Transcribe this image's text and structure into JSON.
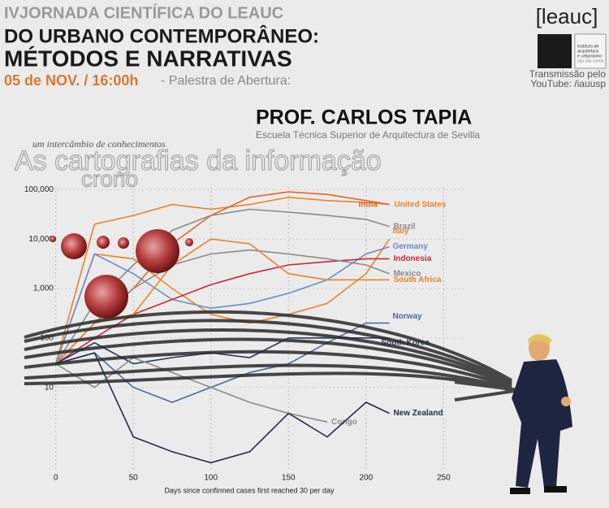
{
  "header": {
    "line1": "IVJORNADA CIENTÍFICA DO LEAUC",
    "line2": "DO URBANO CONTEMPORÂNEO:",
    "line3": "MÉTODOS E NARRATIVAS",
    "date": "05 de NOV. / 16:00h",
    "session": "- Palestra de Abertura:"
  },
  "logo": {
    "name": "[leauc]",
    "institute": [
      "instituto de",
      "arquitetura",
      "e urbanismo",
      "usp são carlos"
    ],
    "stream": [
      "Transmissão pelo",
      "YouTube: /iauusp"
    ]
  },
  "speaker": {
    "name": "PROF. CARLOS TAPIA",
    "affiliation": "Escuela Técnica Superior de Arquitectura de Sevilla"
  },
  "talk": {
    "tagline": "um intercâmbio de conhecimentos",
    "title": "As cartografias da informação",
    "subtitle": "crono"
  },
  "chart_data": {
    "type": "line",
    "log_y": true,
    "grid": true,
    "x_label": "Days since confirmed cases first reached 30 per day",
    "x": [
      0,
      25,
      50,
      75,
      100,
      125,
      150,
      175,
      200,
      215
    ],
    "xlim": [
      -15,
      265
    ],
    "xticks": [
      0,
      50,
      100,
      150,
      200,
      250
    ],
    "ylim": [
      0.2,
      200000
    ],
    "yticks": [
      10,
      100,
      {
        "value": 1000,
        "label": "1,000"
      },
      {
        "value": 10000,
        "label": "10,000"
      },
      {
        "value": 100000,
        "label": "100,000"
      }
    ],
    "series": [
      {
        "name": "United States",
        "color": "#e8842c",
        "values": [
          30,
          20000,
          30000,
          50000,
          40000,
          50000,
          70000,
          60000,
          55000,
          50000
        ]
      },
      {
        "name": "India",
        "color": "#e0692a",
        "values": [
          30,
          200,
          1000,
          8000,
          30000,
          70000,
          90000,
          80000,
          60000,
          50000
        ]
      },
      {
        "name": "Brazil",
        "color": "#8a8a8a",
        "values": [
          30,
          500,
          3000,
          15000,
          30000,
          40000,
          35000,
          30000,
          25000,
          18000
        ]
      },
      {
        "name": "Italy",
        "color": "#e8842c",
        "values": [
          30,
          5000,
          4000,
          1000,
          300,
          200,
          300,
          500,
          2000,
          10000
        ]
      },
      {
        "name": "Germany",
        "color": "#6a8cc7",
        "values": [
          30,
          5000,
          2000,
          600,
          400,
          500,
          800,
          1500,
          5000,
          7000
        ]
      },
      {
        "name": "Indonesia",
        "color": "#c8283c",
        "values": [
          30,
          100,
          300,
          600,
          1200,
          2000,
          3000,
          3500,
          4000,
          4000
        ]
      },
      {
        "name": "Mexico",
        "color": "#8a8a8a",
        "values": [
          30,
          200,
          1000,
          3000,
          5000,
          6000,
          5000,
          4000,
          3000,
          2000
        ]
      },
      {
        "name": "South Africa",
        "color": "#e8842c",
        "values": [
          30,
          200,
          300,
          3000,
          10000,
          8000,
          2000,
          1500,
          1500,
          1500
        ]
      },
      {
        "name": "Norway",
        "color": "#4a6aa0",
        "values": [
          30,
          50,
          10,
          5,
          10,
          20,
          30,
          80,
          200,
          200
        ]
      },
      {
        "name": "South Korea",
        "color": "#2a3a5a",
        "values": [
          30,
          80,
          30,
          40,
          50,
          40,
          100,
          100,
          100,
          100
        ]
      },
      {
        "name": "Congo",
        "color": "#8a8a8a",
        "values": [
          30,
          10,
          40,
          20,
          10,
          5,
          3,
          2,
          null,
          null
        ]
      },
      {
        "name": "New Zealand",
        "color": "#1e2e4a",
        "values": [
          30,
          50,
          1,
          0.5,
          0.3,
          0.5,
          3,
          1,
          5,
          3
        ]
      }
    ]
  }
}
